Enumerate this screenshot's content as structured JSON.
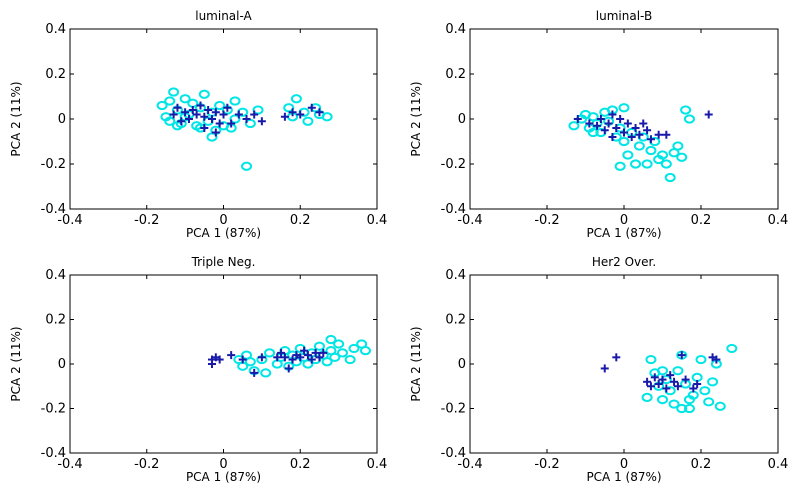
{
  "chart_data": [
    {
      "type": "scatter",
      "title": "luminal-A",
      "xlabel": "PCA 1 (87%)",
      "ylabel": "PCA 2 (11%)",
      "xlim": [
        -0.4,
        0.4
      ],
      "ylim": [
        -0.4,
        0.4
      ],
      "xticks": [
        "-0.4",
        "-0.2",
        "0",
        "0.2",
        "0.4"
      ],
      "yticks": [
        "0.4",
        "0.2",
        "0",
        "-0.2",
        "-0.4"
      ],
      "series": [
        {
          "marker": "circle",
          "color": "#00e5e5",
          "points": [
            [
              -0.16,
              0.06
            ],
            [
              -0.15,
              0.01
            ],
            [
              -0.14,
              0.08
            ],
            [
              -0.13,
              0.12
            ],
            [
              -0.12,
              0.04
            ],
            [
              -0.11,
              -0.02
            ],
            [
              -0.1,
              0.09
            ],
            [
              -0.09,
              0.02
            ],
            [
              -0.08,
              0.07
            ],
            [
              -0.07,
              -0.03
            ],
            [
              -0.06,
              0.05
            ],
            [
              -0.05,
              0.11
            ],
            [
              -0.04,
              -0.01
            ],
            [
              -0.03,
              0.03
            ],
            [
              -0.02,
              -0.05
            ],
            [
              -0.01,
              0.06
            ],
            [
              0.0,
              -0.03
            ],
            [
              0.01,
              0.04
            ],
            [
              0.02,
              -0.04
            ],
            [
              0.03,
              0.08
            ],
            [
              -0.14,
              -0.01
            ],
            [
              -0.12,
              -0.03
            ],
            [
              -0.1,
              0.01
            ],
            [
              -0.06,
              -0.04
            ],
            [
              -0.03,
              -0.08
            ],
            [
              0.03,
              0.0
            ],
            [
              0.05,
              0.03
            ],
            [
              0.07,
              -0.02
            ],
            [
              0.09,
              0.04
            ],
            [
              0.17,
              0.05
            ],
            [
              0.18,
              0.01
            ],
            [
              0.19,
              0.09
            ],
            [
              0.21,
              0.03
            ],
            [
              0.22,
              -0.01
            ],
            [
              0.24,
              0.05
            ],
            [
              0.25,
              0.02
            ],
            [
              0.27,
              0.01
            ],
            [
              0.06,
              -0.21
            ]
          ]
        },
        {
          "marker": "plus",
          "color": "#1a1aaa",
          "points": [
            [
              -0.13,
              0.02
            ],
            [
              -0.12,
              0.05
            ],
            [
              -0.1,
              0.03
            ],
            [
              -0.09,
              0.0
            ],
            [
              -0.08,
              0.04
            ],
            [
              -0.07,
              0.02
            ],
            [
              -0.06,
              0.06
            ],
            [
              -0.05,
              0.01
            ],
            [
              -0.04,
              0.04
            ],
            [
              -0.03,
              0.0
            ],
            [
              -0.02,
              0.03
            ],
            [
              -0.01,
              -0.02
            ],
            [
              0.0,
              0.02
            ],
            [
              0.01,
              0.05
            ],
            [
              0.02,
              -0.02
            ],
            [
              0.04,
              0.02
            ],
            [
              0.06,
              0.0
            ],
            [
              0.08,
              0.02
            ],
            [
              0.1,
              -0.01
            ],
            [
              0.16,
              0.01
            ],
            [
              0.18,
              0.03
            ],
            [
              0.2,
              0.02
            ],
            [
              0.23,
              0.05
            ],
            [
              0.25,
              0.03
            ],
            [
              -0.11,
              -0.01
            ],
            [
              -0.05,
              -0.04
            ],
            [
              -0.02,
              -0.06
            ]
          ]
        }
      ]
    },
    {
      "type": "scatter",
      "title": "luminal-B",
      "xlabel": "PCA 1 (87%)",
      "ylabel": "PCA 2 (11%)",
      "xlim": [
        -0.4,
        0.4
      ],
      "ylim": [
        -0.4,
        0.4
      ],
      "xticks": [
        "-0.4",
        "-0.2",
        "0",
        "0.2",
        "0.4"
      ],
      "yticks": [
        "0.4",
        "0.2",
        "0",
        "-0.2",
        "-0.4"
      ],
      "series": [
        {
          "marker": "circle",
          "color": "#00e5e5",
          "points": [
            [
              -0.13,
              -0.03
            ],
            [
              -0.11,
              0.0
            ],
            [
              -0.1,
              0.02
            ],
            [
              -0.09,
              -0.04
            ],
            [
              -0.08,
              0.01
            ],
            [
              -0.07,
              -0.02
            ],
            [
              -0.06,
              -0.06
            ],
            [
              -0.05,
              0.03
            ],
            [
              -0.04,
              -0.01
            ],
            [
              -0.03,
              0.04
            ],
            [
              -0.02,
              -0.08
            ],
            [
              -0.01,
              -0.04
            ],
            [
              0.0,
              -0.1
            ],
            [
              0.01,
              -0.16
            ],
            [
              0.02,
              -0.06
            ],
            [
              0.03,
              -0.2
            ],
            [
              0.04,
              -0.12
            ],
            [
              0.05,
              -0.08
            ],
            [
              0.06,
              -0.2
            ],
            [
              0.07,
              -0.14
            ],
            [
              0.08,
              -0.1
            ],
            [
              0.09,
              -0.18
            ],
            [
              0.1,
              -0.16
            ],
            [
              0.11,
              -0.2
            ],
            [
              0.12,
              -0.26
            ],
            [
              0.13,
              -0.15
            ],
            [
              0.14,
              -0.12
            ],
            [
              0.15,
              -0.17
            ],
            [
              0.16,
              0.04
            ],
            [
              0.17,
              0.0
            ],
            [
              -0.01,
              -0.21
            ],
            [
              0.0,
              0.05
            ],
            [
              -0.08,
              -0.06
            ]
          ]
        },
        {
          "marker": "plus",
          "color": "#1a1aaa",
          "points": [
            [
              -0.12,
              0.0
            ],
            [
              -0.09,
              -0.02
            ],
            [
              -0.07,
              -0.03
            ],
            [
              -0.06,
              0.0
            ],
            [
              -0.05,
              -0.05
            ],
            [
              -0.04,
              -0.02
            ],
            [
              -0.03,
              0.02
            ],
            [
              -0.02,
              -0.04
            ],
            [
              -0.01,
              0.0
            ],
            [
              0.0,
              -0.06
            ],
            [
              0.01,
              -0.02
            ],
            [
              0.02,
              -0.08
            ],
            [
              0.03,
              -0.04
            ],
            [
              0.04,
              -0.07
            ],
            [
              0.05,
              -0.02
            ],
            [
              0.06,
              -0.05
            ],
            [
              0.07,
              -0.09
            ],
            [
              0.09,
              -0.07
            ],
            [
              0.11,
              -0.07
            ],
            [
              0.22,
              0.02
            ],
            [
              -0.03,
              -0.08
            ]
          ]
        }
      ]
    },
    {
      "type": "scatter",
      "title": "Triple Neg.",
      "xlabel": "PCA 1 (87%)",
      "ylabel": "PCA 2 (11%)",
      "xlim": [
        -0.4,
        0.4
      ],
      "ylim": [
        -0.4,
        0.4
      ],
      "xticks": [
        "-0.4",
        "-0.2",
        "0",
        "0.2",
        "0.4"
      ],
      "yticks": [
        "0.4",
        "0.2",
        "0",
        "-0.2",
        "-0.4"
      ],
      "series": [
        {
          "marker": "circle",
          "color": "#00e5e5",
          "points": [
            [
              0.04,
              0.02
            ],
            [
              0.05,
              -0.01
            ],
            [
              0.06,
              0.04
            ],
            [
              0.07,
              0.01
            ],
            [
              0.08,
              -0.03
            ],
            [
              0.1,
              0.02
            ],
            [
              0.12,
              0.05
            ],
            [
              0.14,
              0.0
            ],
            [
              0.15,
              0.03
            ],
            [
              0.16,
              0.06
            ],
            [
              0.17,
              -0.01
            ],
            [
              0.18,
              0.04
            ],
            [
              0.19,
              0.01
            ],
            [
              0.2,
              0.07
            ],
            [
              0.21,
              0.03
            ],
            [
              0.22,
              0.0
            ],
            [
              0.23,
              0.05
            ],
            [
              0.24,
              0.02
            ],
            [
              0.25,
              0.08
            ],
            [
              0.26,
              0.04
            ],
            [
              0.27,
              0.01
            ],
            [
              0.28,
              0.06
            ],
            [
              0.29,
              0.03
            ],
            [
              0.3,
              0.09
            ],
            [
              0.31,
              0.05
            ],
            [
              0.33,
              0.02
            ],
            [
              0.34,
              0.07
            ],
            [
              0.36,
              0.09
            ],
            [
              0.37,
              0.06
            ],
            [
              0.28,
              0.11
            ],
            [
              0.11,
              -0.04
            ]
          ]
        },
        {
          "marker": "plus",
          "color": "#1a1aaa",
          "points": [
            [
              -0.03,
              0.02
            ],
            [
              -0.02,
              0.03
            ],
            [
              -0.01,
              0.02
            ],
            [
              0.02,
              0.04
            ],
            [
              0.05,
              0.02
            ],
            [
              0.08,
              -0.04
            ],
            [
              0.1,
              0.03
            ],
            [
              0.17,
              -0.02
            ],
            [
              0.15,
              0.05
            ],
            [
              0.18,
              0.02
            ],
            [
              0.19,
              0.04
            ],
            [
              0.2,
              0.03
            ],
            [
              0.21,
              0.06
            ],
            [
              0.22,
              0.04
            ],
            [
              0.23,
              0.02
            ],
            [
              0.24,
              0.05
            ],
            [
              0.25,
              0.03
            ],
            [
              0.26,
              0.05
            ],
            [
              0.14,
              0.03
            ],
            [
              0.16,
              0.03
            ],
            [
              -0.03,
              0.0
            ]
          ]
        }
      ]
    },
    {
      "type": "scatter",
      "title": "Her2 Over.",
      "xlabel": "PCA 1 (87%)",
      "ylabel": "PCA 2 (11%)",
      "xlim": [
        -0.4,
        0.4
      ],
      "ylim": [
        -0.4,
        0.4
      ],
      "xticks": [
        "-0.4",
        "-0.2",
        "0",
        "0.2",
        "0.4"
      ],
      "yticks": [
        "0.4",
        "0.2",
        "0",
        "-0.2",
        "-0.4"
      ],
      "series": [
        {
          "marker": "circle",
          "color": "#00e5e5",
          "points": [
            [
              0.07,
              0.02
            ],
            [
              0.08,
              -0.04
            ],
            [
              0.09,
              -0.1
            ],
            [
              0.1,
              -0.16
            ],
            [
              0.11,
              -0.07
            ],
            [
              0.12,
              -0.12
            ],
            [
              0.13,
              -0.18
            ],
            [
              0.14,
              -0.03
            ],
            [
              0.15,
              0.04
            ],
            [
              0.16,
              -0.09
            ],
            [
              0.17,
              -0.2
            ],
            [
              0.18,
              -0.14
            ],
            [
              0.19,
              -0.06
            ],
            [
              0.2,
              0.02
            ],
            [
              0.21,
              -0.12
            ],
            [
              0.22,
              -0.17
            ],
            [
              0.23,
              -0.08
            ],
            [
              0.24,
              0.0
            ],
            [
              0.25,
              -0.19
            ],
            [
              0.28,
              0.07
            ],
            [
              0.06,
              -0.15
            ],
            [
              0.15,
              -0.2
            ],
            [
              0.17,
              -0.16
            ],
            [
              0.1,
              -0.03
            ]
          ]
        },
        {
          "marker": "plus",
          "color": "#1a1aaa",
          "points": [
            [
              -0.05,
              -0.02
            ],
            [
              -0.02,
              0.03
            ],
            [
              0.06,
              -0.08
            ],
            [
              0.07,
              -0.1
            ],
            [
              0.08,
              -0.06
            ],
            [
              0.09,
              -0.09
            ],
            [
              0.1,
              -0.07
            ],
            [
              0.11,
              -0.11
            ],
            [
              0.13,
              -0.08
            ],
            [
              0.14,
              -0.1
            ],
            [
              0.15,
              0.04
            ],
            [
              0.16,
              -0.07
            ],
            [
              0.18,
              -0.11
            ],
            [
              0.19,
              -0.09
            ],
            [
              0.23,
              0.03
            ],
            [
              0.24,
              0.02
            ],
            [
              0.12,
              -0.05
            ]
          ]
        }
      ]
    }
  ]
}
